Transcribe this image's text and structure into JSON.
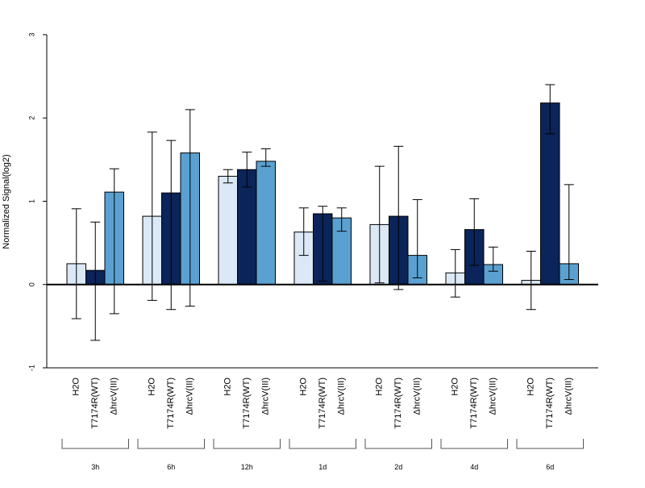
{
  "chart_data": {
    "type": "bar",
    "ylabel": "Normalized Signal(log2)",
    "ylim": [
      -1,
      3
    ],
    "yticks": [
      -1,
      0,
      1,
      2,
      3
    ],
    "colors": [
      "#dbe8f5",
      "#0b2459",
      "#5aa1d1"
    ],
    "conditions": [
      "H2O",
      "T7174R(WT)",
      "ΔhrcV(III)"
    ],
    "groups": [
      "3h",
      "6h",
      "12h",
      "1d",
      "2d",
      "4d",
      "6d"
    ],
    "series": [
      {
        "values": [
          0.25,
          0.82,
          1.3,
          0.63,
          0.72,
          0.14,
          0.05
        ],
        "err_low": [
          -0.41,
          -0.19,
          1.22,
          0.35,
          0.02,
          -0.15,
          -0.3
        ],
        "err_high": [
          0.91,
          1.83,
          1.38,
          0.92,
          1.42,
          0.42,
          0.4
        ]
      },
      {
        "values": [
          0.17,
          1.1,
          1.38,
          0.85,
          0.82,
          0.66,
          2.18
        ],
        "err_low": [
          -0.67,
          -0.3,
          1.17,
          0.04,
          -0.06,
          0.23,
          1.81
        ],
        "err_high": [
          0.75,
          1.73,
          1.59,
          0.94,
          1.66,
          1.03,
          2.4
        ]
      },
      {
        "values": [
          1.11,
          1.58,
          1.48,
          0.8,
          0.35,
          0.24,
          0.25
        ],
        "err_low": [
          -0.35,
          -0.26,
          1.42,
          0.64,
          0.08,
          0.16,
          0.06
        ],
        "err_high": [
          1.39,
          2.1,
          1.63,
          0.92,
          1.02,
          0.45,
          1.2
        ]
      }
    ]
  }
}
